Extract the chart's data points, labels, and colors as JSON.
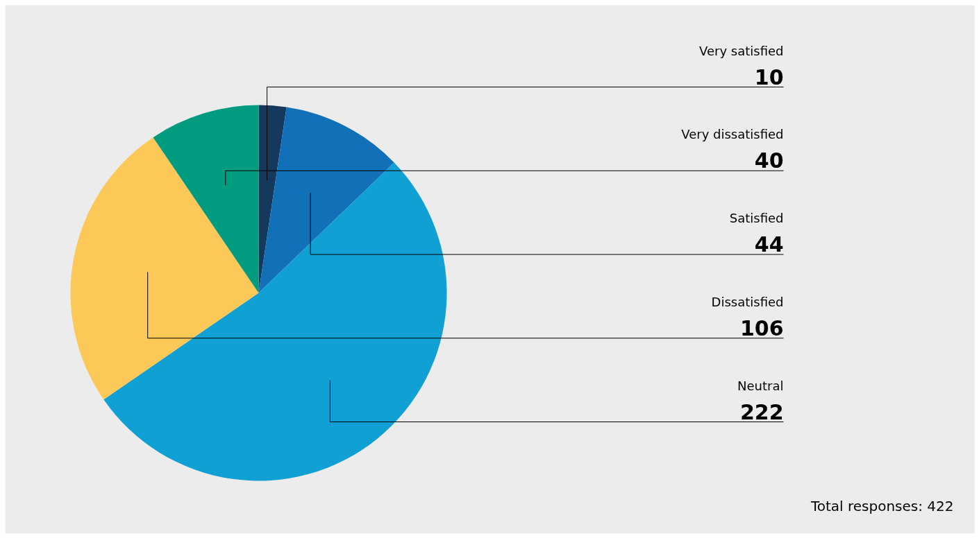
{
  "chart_data": {
    "type": "pie",
    "categories": [
      "Very satisfied",
      "Satisfied",
      "Neutral",
      "Dissatisfied",
      "Very dissatisfied"
    ],
    "values": [
      10,
      44,
      222,
      106,
      40
    ],
    "colors": [
      "#14395c",
      "#1170b8",
      "#11a0d3",
      "#fcc857",
      "#019c80"
    ],
    "data_labels": true,
    "annotations": [
      "Total responses: 422"
    ]
  }
}
